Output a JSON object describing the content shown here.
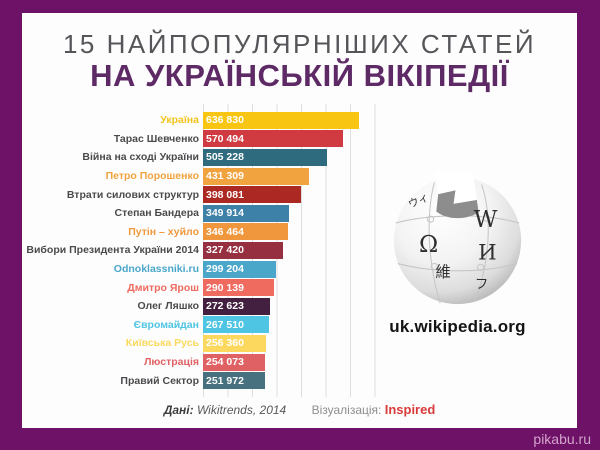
{
  "frame": {
    "border_color": "#6e1268",
    "watermark": "pikabu.ru"
  },
  "title": {
    "line1": "15 НАЙПОПУЛЯРНІШИХ СТАТЕЙ",
    "line2": "НА УКРАЇНСЬКІЙ ВІКІПЕДІЇ"
  },
  "chart_data": {
    "type": "bar",
    "orientation": "horizontal",
    "title": "15 найпопулярніших статей на українській Вікіпедії",
    "categories": [
      "Україна",
      "Тарас Шевченко",
      "Війна на сході України",
      "Петро Порошенко",
      "Втрати силових структур",
      "Степан Бандера",
      "Путін – хуйло",
      "Вибори Президента України 2014",
      "Odnoklassniki.ru",
      "Дмитро Ярош",
      "Олег Ляшко",
      "Євромайдан",
      "Київська Русь",
      "Люстрація",
      "Правий Сектор"
    ],
    "values": [
      636830,
      570494,
      505228,
      431309,
      398081,
      349914,
      346464,
      327420,
      299204,
      290139,
      272623,
      267510,
      256360,
      254073,
      251972
    ],
    "value_labels": [
      "636 830",
      "570 494",
      "505 228",
      "431 309",
      "398 081",
      "349 914",
      "346 464",
      "327 420",
      "299 204",
      "290 139",
      "272 623",
      "267 510",
      "256 360",
      "254 073",
      "251 972"
    ],
    "bar_colors": [
      "#f9c513",
      "#cf3b41",
      "#2f6b7e",
      "#f0a33f",
      "#ab2823",
      "#3d80a8",
      "#f0973d",
      "#962f3f",
      "#4aa7ca",
      "#ef6a5f",
      "#442040",
      "#4ec5e2",
      "#fcd95e",
      "#e06163",
      "#47717e"
    ],
    "label_colors": [
      "#f3c51c",
      "#4b4b4e",
      "#4b4b4e",
      "#f0a33f",
      "#4b4b4e",
      "#4b4b4e",
      "#f0973d",
      "#4b4b4e",
      "#4aa7ca",
      "#ee6a5f",
      "#4b4b4e",
      "#4ec5e2",
      "#fbd95e",
      "#e06163",
      "#4b4b4e"
    ],
    "value_text_color": "#ffffff",
    "xlim": [
      0,
      714000
    ],
    "gridlines_every": 100000,
    "grid": true,
    "legend": false
  },
  "logo": {
    "icon": "wikipedia-globe-logo",
    "caption": "uk.wikipedia.org"
  },
  "footer": {
    "data_label": "Дані:",
    "data_value": "Wikitrends, 2014",
    "viz_label": "Візуалізація:",
    "viz_value": "Inspired",
    "viz_value_color": "#d93a3a"
  }
}
